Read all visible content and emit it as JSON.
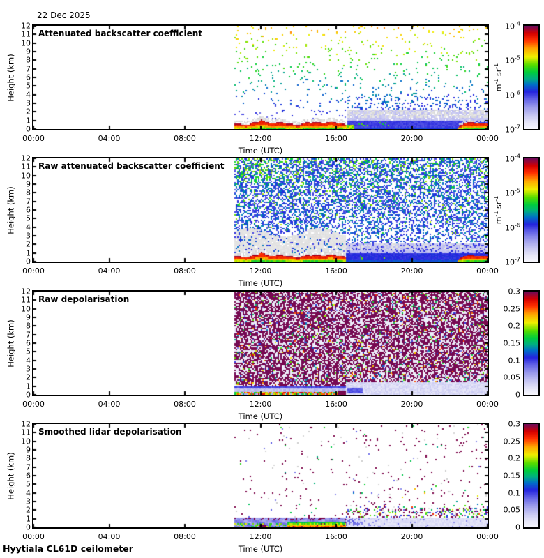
{
  "figure": {
    "date": "22 Dec 2025",
    "footer": "Hyytiala CL61D ceilometer",
    "background": "#ffffff",
    "axis_color": "#000000"
  },
  "chart_data": {
    "type": "heatmap",
    "date": "22 Dec 2025",
    "xlabel": "Time (UTC)",
    "ylabel": "Height (km)",
    "x_ticks": [
      "00:00",
      "04:00",
      "08:00",
      "12:00",
      "16:00",
      "20:00",
      "00:00"
    ],
    "x_range_hours": [
      0,
      24
    ],
    "y_ticks": [
      "0",
      "1",
      "2",
      "3",
      "4",
      "5",
      "6",
      "7",
      "8",
      "9",
      "10",
      "11",
      "12"
    ],
    "y_range_km": [
      0,
      12
    ],
    "grid": false,
    "colormap_stops": [
      [
        0.0,
        "#f7f7fd"
      ],
      [
        0.06,
        "#e6e6f8"
      ],
      [
        0.13,
        "#c6c6f2"
      ],
      [
        0.21,
        "#9a9aec"
      ],
      [
        0.29,
        "#6060e6"
      ],
      [
        0.36,
        "#2424de"
      ],
      [
        0.43,
        "#0070c8"
      ],
      [
        0.49,
        "#00b080"
      ],
      [
        0.55,
        "#00cc3e"
      ],
      [
        0.62,
        "#55dd00"
      ],
      [
        0.7,
        "#efef00"
      ],
      [
        0.78,
        "#ffa800"
      ],
      [
        0.86,
        "#ff3200"
      ],
      [
        0.93,
        "#d40000"
      ],
      [
        1.0,
        "#700a58"
      ]
    ],
    "panels": [
      {
        "id": "attenuated-backscatter",
        "title": "Attenuated backscatter coefficient",
        "colorbar": {
          "scale": "log",
          "ticks": [
            "10^-4",
            "10^-5",
            "10^-6",
            "10^-7"
          ],
          "unit": "m^-1 sr^-1",
          "min": 1e-07,
          "max": 0.0001
        },
        "features": {
          "data_start_utc": 10.65,
          "regime_change_utc": 16.5,
          "boundary_layer_top_km": 1.0,
          "evening_surface_top_km": 1.05,
          "evening_haze_top_km": 2.2,
          "late_band_utc": [
            22.4,
            24
          ],
          "noise_dots_max_km": 12
        }
      },
      {
        "id": "raw-attenuated-backscatter",
        "title": "Raw attenuated backscatter coefficient",
        "colorbar": {
          "scale": "log",
          "ticks": [
            "10^-4",
            "10^-5",
            "10^-6",
            "10^-7"
          ],
          "unit": "m^-1 sr^-1",
          "min": 1e-07,
          "max": 0.0001
        },
        "features": {
          "data_start_utc": 10.65,
          "regime_change_utc": 16.5,
          "boundary_layer_top_km": 1.0,
          "grey_region_top_km": 3.6,
          "evening_surface_top_km": 1.0,
          "evening_haze_top_km": 2.1,
          "late_band_utc": [
            22.4,
            24
          ]
        }
      },
      {
        "id": "raw-depolarisation",
        "title": "Raw depolarisation",
        "colorbar": {
          "scale": "linear",
          "ticks": [
            "0.3",
            "0.25",
            "0.2",
            "0.15",
            "0.1",
            "0.05",
            "0"
          ],
          "unit": null,
          "min": 0,
          "max": 0.3
        },
        "features": {
          "data_start_utc": 10.65,
          "regime_change_utc": 16.5,
          "low_band_top_km": 1.0,
          "evening_low_band_top_km": 1.4,
          "evening_mixed_band_top_km": 2.5,
          "dark_blob_utc": [
            16.05,
            16.5
          ]
        }
      },
      {
        "id": "smoothed-lidar-depolarisation",
        "title": "Smoothed lidar depolarisation",
        "colorbar": {
          "scale": "linear",
          "ticks": [
            "0.3",
            "0.25",
            "0.2",
            "0.15",
            "0.1",
            "0.05",
            "0"
          ],
          "unit": null,
          "min": 0,
          "max": 0.3
        },
        "features": {
          "data_start_utc": 10.65,
          "regime_change_utc": 16.5,
          "low_band_top_km": 1.12,
          "strong_band_utc": [
            13.4,
            16.5
          ],
          "dark_blob_utc": [
            11.95,
            12.3
          ],
          "evening_speckle_band_km": [
            1.12,
            2.6
          ]
        }
      }
    ]
  }
}
